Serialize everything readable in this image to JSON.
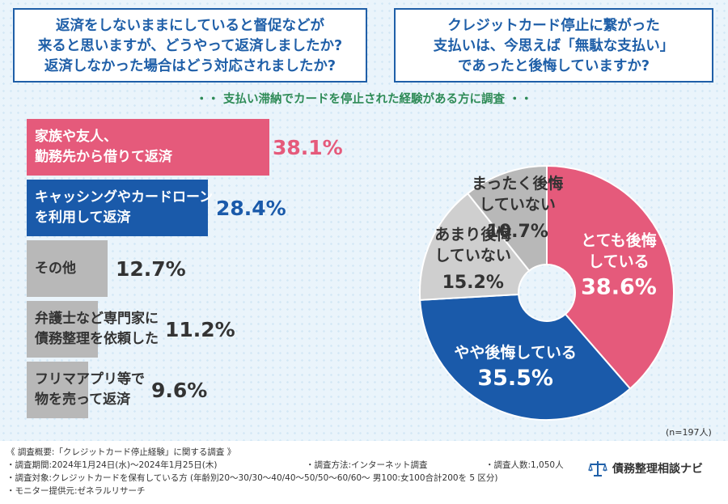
{
  "questions": {
    "left": [
      "返済をしないままにしていると督促などが",
      "来ると思いますが、どうやって返済しましたか?",
      "返済しなかった場合はどう対応されましたか?"
    ],
    "right": [
      "クレジットカード停止に繋がった",
      "支払いは、今思えば「無駄な支払い」",
      "であったと後悔していますか?"
    ]
  },
  "subtitle": "・・ 支払い滞納でカードを停止された経験がある方に調査 ・・",
  "sample_size": "(n=197人)",
  "colors": {
    "pink": "#e55a7b",
    "blue": "#1a5aaa",
    "gray": "#b8b8b8",
    "lightgray": "#cfcfcf"
  },
  "chart_data": [
    {
      "type": "bar",
      "orientation": "horizontal",
      "categories": [
        [
          "家族や友人、",
          "勤務先から借りて返済"
        ],
        [
          "キャッシングやカードローン",
          "を利用して返済"
        ],
        [
          "その他"
        ],
        [
          "弁護士など専門家に",
          "債務整理を依頼した"
        ],
        [
          "フリマアプリ等で",
          "物を売って返済"
        ]
      ],
      "values": [
        38.1,
        28.4,
        12.7,
        11.2,
        9.6
      ],
      "value_labels": [
        "38.1%",
        "28.4%",
        "12.7%",
        "11.2%",
        "9.6%"
      ],
      "colors": [
        "#e55a7b",
        "#1a5aaa",
        "#b8b8b8",
        "#b8b8b8",
        "#b8b8b8"
      ]
    },
    {
      "type": "pie",
      "categories": [
        [
          "とても後悔",
          "している"
        ],
        [
          "やや後悔している"
        ],
        [
          "あまり後悔",
          "していない"
        ],
        [
          "まったく後悔",
          "していない"
        ]
      ],
      "values": [
        38.6,
        35.5,
        15.2,
        10.7
      ],
      "value_labels": [
        "38.6%",
        "35.5%",
        "15.2%",
        "10.7%"
      ],
      "colors": [
        "#e55a7b",
        "#1a5aaa",
        "#cfcfcf",
        "#b8b8b8"
      ]
    }
  ],
  "footer": {
    "overview": "《 調査概要:「クレジットカード停止経験」に関する調査 》",
    "period": "・調査期間:2024年1月24日(水)〜2024年1月25日(木)",
    "method": "・調査方法:インターネット調査",
    "count": "・調査人数:1,050人",
    "target": "・調査対象:クレジットカードを保有している方 (年齢別20〜30/30〜40/40〜50/50〜60/60〜 男100:女100合計200を 5 区分)",
    "provider": "・モニター提供元:ゼネラルリサーチ",
    "logo_text": "債務整理相談ナビ"
  }
}
